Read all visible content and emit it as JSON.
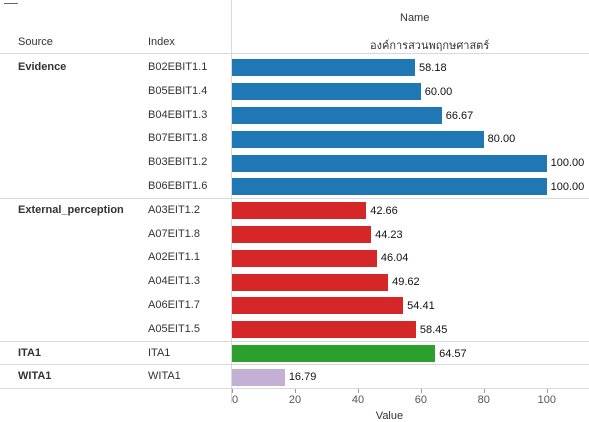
{
  "header": {
    "col_name": "Name",
    "col_source": "Source",
    "col_index": "Index",
    "org_name": "องค์การสวนพฤกษศาสตร์"
  },
  "chart_data": {
    "type": "bar",
    "orientation": "horizontal",
    "xlabel": "Value",
    "xlim": [
      0,
      100
    ],
    "xticks": [
      "0",
      "20",
      "40",
      "60",
      "80",
      "100"
    ],
    "groups": [
      {
        "source": "Evidence",
        "color": "#1f77b4",
        "rows": [
          {
            "index": "B02EBIT1.1",
            "value": 58.18,
            "label": "58.18"
          },
          {
            "index": "B05EBIT1.4",
            "value": 60.0,
            "label": "60.00"
          },
          {
            "index": "B04EBIT1.3",
            "value": 66.67,
            "label": "66.67"
          },
          {
            "index": "B07EBIT1.8",
            "value": 80.0,
            "label": "80.00"
          },
          {
            "index": "B03EBIT1.2",
            "value": 100.0,
            "label": "100.00"
          },
          {
            "index": "B06EBIT1.6",
            "value": 100.0,
            "label": "100.00"
          }
        ]
      },
      {
        "source": "External_perception",
        "color": "#d62728",
        "rows": [
          {
            "index": "A03EIT1.2",
            "value": 42.66,
            "label": "42.66"
          },
          {
            "index": "A07EIT1.8",
            "value": 44.23,
            "label": "44.23"
          },
          {
            "index": "A02EIT1.1",
            "value": 46.04,
            "label": "46.04"
          },
          {
            "index": "A04EIT1.3",
            "value": 49.62,
            "label": "49.62"
          },
          {
            "index": "A06EIT1.7",
            "value": 54.41,
            "label": "54.41"
          },
          {
            "index": "A05EIT1.5",
            "value": 58.45,
            "label": "58.45"
          }
        ]
      },
      {
        "source": "ITA1",
        "color": "#2ca02c",
        "rows": [
          {
            "index": "ITA1",
            "value": 64.57,
            "label": "64.57"
          }
        ]
      },
      {
        "source": "WITA1",
        "color": "#c5b0d5",
        "rows": [
          {
            "index": "WITA1",
            "value": 16.79,
            "label": "16.79"
          }
        ]
      }
    ]
  }
}
